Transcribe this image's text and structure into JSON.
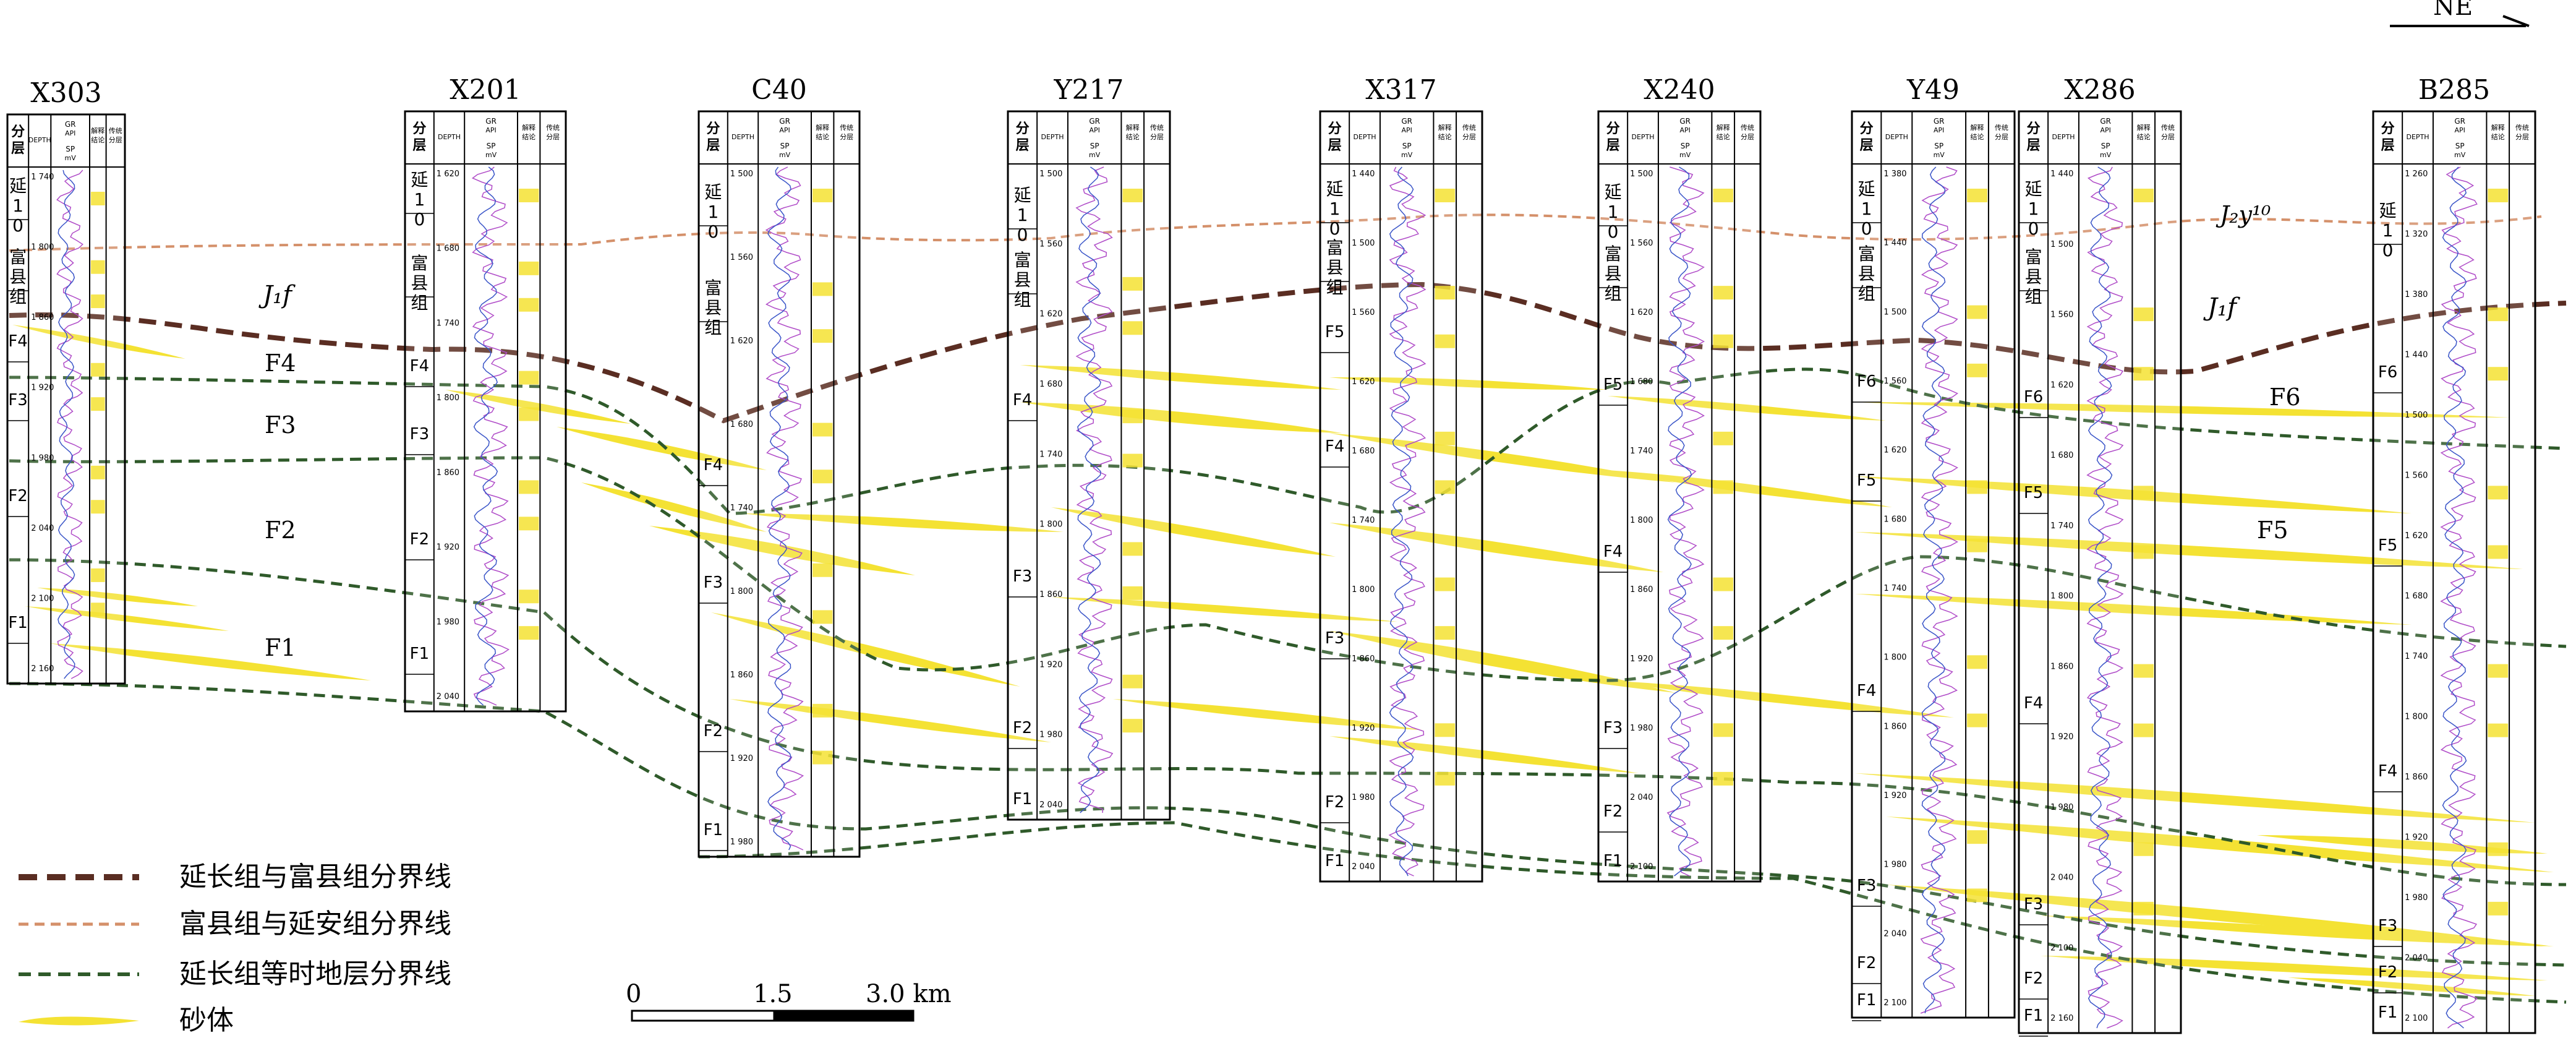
{
  "direction": "NE",
  "scale": {
    "zero": "0",
    "mid": "1.5",
    "end": "3.0 km"
  },
  "column_headers": {
    "layer": "分层",
    "depth": "DEPTH",
    "gr": "GR",
    "gr_unit": "API",
    "sp": "SP",
    "sp_unit": "mV",
    "interp": "解释结论",
    "trad": "传统分层"
  },
  "formation_labels": {
    "jyf": "J₁f",
    "jyf2": "J₁f",
    "jyy": "J₂y¹⁰"
  },
  "wells": [
    {
      "name": "X303",
      "zones": [
        "延10",
        "富县组",
        "F4",
        "F3",
        "F2",
        "F1"
      ],
      "depths": [
        "1 740",
        "1 800",
        "1 860",
        "1 920",
        "1 980",
        "2 040",
        "2 100",
        "2 160"
      ]
    },
    {
      "name": "X201",
      "zones": [
        "延10",
        "富县组",
        "F4",
        "F3",
        "F2",
        "F1"
      ],
      "depths": [
        "1 620",
        "1 680",
        "1 740",
        "1 800",
        "1 860",
        "1 920",
        "1 980",
        "2 040"
      ]
    },
    {
      "name": "C40",
      "zones": [
        "延10",
        "富县组",
        "F4",
        "F3",
        "F2",
        "F1"
      ],
      "depths": [
        "1 500",
        "1 560",
        "1 620",
        "1 680",
        "1 740",
        "1 800",
        "1 860",
        "1 920",
        "1 980"
      ]
    },
    {
      "name": "Y217",
      "zones": [
        "延10",
        "富县组",
        "F4",
        "F3",
        "F2",
        "F1"
      ],
      "depths": [
        "1 500",
        "1 560",
        "1 620",
        "1 680",
        "1 740",
        "1 800",
        "1 860",
        "1 920",
        "1 980",
        "2 040"
      ]
    },
    {
      "name": "X317",
      "zones": [
        "延10",
        "富县组",
        "F5",
        "F4",
        "F3",
        "F2",
        "F1"
      ],
      "depths": [
        "1 440",
        "1 500",
        "1 560",
        "1 620",
        "1 680",
        "1 740",
        "1 800",
        "1 860",
        "1 920",
        "1 980",
        "2 040"
      ]
    },
    {
      "name": "X240",
      "zones": [
        "延10",
        "富县组",
        "F5",
        "F4",
        "F3",
        "F2",
        "F1"
      ],
      "depths": [
        "1 500",
        "1 560",
        "1 620",
        "1 680",
        "1 740",
        "1 800",
        "1 860",
        "1 920",
        "1 980",
        "2 040",
        "2 100"
      ]
    },
    {
      "name": "Y49",
      "zones": [
        "延10",
        "富县组",
        "F6",
        "F5",
        "F4",
        "F3",
        "F2",
        "F1"
      ],
      "depths": [
        "1 380",
        "1 440",
        "1 500",
        "1 560",
        "1 620",
        "1 680",
        "1 740",
        "1 800",
        "1 860",
        "1 920",
        "1 980",
        "2 040",
        "2 100"
      ]
    },
    {
      "name": "X286",
      "zones": [
        "延10",
        "富县组",
        "F6",
        "F5",
        "F4",
        "F3",
        "F2",
        "F1"
      ],
      "depths": [
        "1 440",
        "1 500",
        "1 560",
        "1 620",
        "1 680",
        "1 740",
        "1 800",
        "1 860",
        "1 920",
        "1 980",
        "2 040",
        "2 100",
        "2 160"
      ]
    },
    {
      "name": "B285",
      "zones": [
        "延10",
        "F6",
        "F5",
        "F4",
        "F3",
        "F2",
        "F1"
      ],
      "depths": [
        "1 260",
        "1 320",
        "1 380",
        "1 440",
        "1 500",
        "1 560",
        "1 620",
        "1 680",
        "1 740",
        "1 800",
        "1 860",
        "1 920",
        "1 980",
        "2 040",
        "2 100"
      ]
    }
  ],
  "layer_labels": [
    "F4",
    "F3",
    "F2",
    "F1",
    "F6",
    "F5"
  ],
  "legend": [
    {
      "label": "延长组与富县组分界线",
      "color": "#5a2d22",
      "style": "dash-thick"
    },
    {
      "label": "富县组与延安组分界线",
      "color": "#d4906a",
      "style": "dash-thin"
    },
    {
      "label": "延长组等时地层分界线",
      "color": "#2f5a2a",
      "style": "dash-medium"
    },
    {
      "label": "砂体",
      "color": "#f4e233",
      "style": "sand"
    }
  ]
}
